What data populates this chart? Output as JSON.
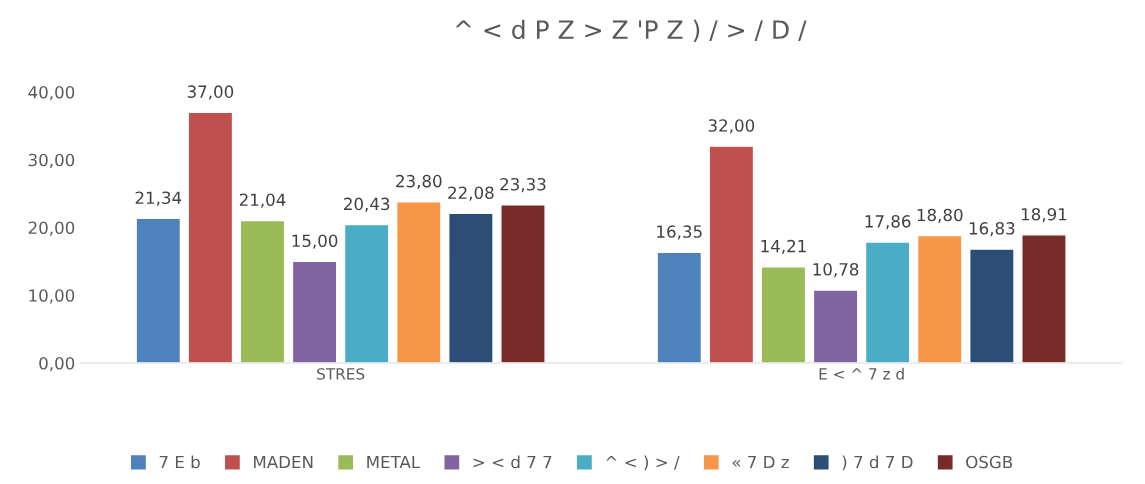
{
  "chart_data": {
    "type": "bar",
    "title": "^ < d P Z > Z 'P Z ) / > / D /",
    "categories": [
      "STRES",
      "E < ^ 7 z d"
    ],
    "ylim": [
      0,
      40
    ],
    "yticks": [
      {
        "value": 0,
        "label": "0,00"
      },
      {
        "value": 10,
        "label": "10,00"
      },
      {
        "value": 20,
        "label": "20,00"
      },
      {
        "value": 30,
        "label": "30,00"
      },
      {
        "value": 40,
        "label": "40,00"
      }
    ],
    "grid": false,
    "legend": "bottom",
    "series": [
      {
        "name": "7 E b",
        "color": "#4f81bd",
        "values": [
          21.34,
          16.35
        ],
        "value_labels": [
          "21,34",
          "16,35"
        ]
      },
      {
        "name": "MADEN",
        "color": "#c0504d",
        "values": [
          37.0,
          32.0
        ],
        "value_labels": [
          "37,00",
          "32,00"
        ]
      },
      {
        "name": "METAL",
        "color": "#9bbb59",
        "values": [
          21.04,
          14.21
        ],
        "value_labels": [
          "21,04",
          "14,21"
        ]
      },
      {
        "name": "> < d 7 7",
        "color": "#8064a2",
        "values": [
          15.0,
          10.78
        ],
        "value_labels": [
          "15,00",
          "10,78"
        ]
      },
      {
        "name": "^ < ) > /",
        "color": "#4bacc6",
        "values": [
          20.43,
          17.86
        ],
        "value_labels": [
          "20,43",
          "17,86"
        ]
      },
      {
        "name": "« 7 D z",
        "color": "#f79646",
        "values": [
          23.8,
          18.8
        ],
        "value_labels": [
          "23,80",
          "18,80"
        ]
      },
      {
        "name": ") 7 d 7 D",
        "color": "#2c4d75",
        "values": [
          22.08,
          16.83
        ],
        "value_labels": [
          "22,08",
          "16,83"
        ]
      },
      {
        "name": "OSGB",
        "color": "#772c2a",
        "values": [
          23.33,
          18.91
        ],
        "value_labels": [
          "23,33",
          "18,91"
        ]
      }
    ]
  }
}
